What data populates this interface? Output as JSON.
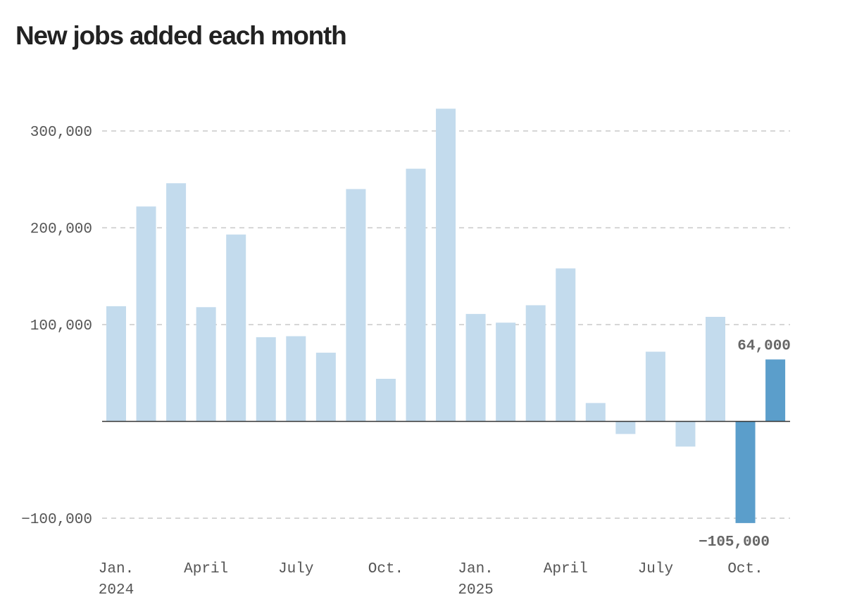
{
  "chart_data": {
    "type": "bar",
    "title": "New jobs added each month",
    "xlabel": "",
    "ylabel": "",
    "ylim": [
      -110000,
      330000
    ],
    "grid": true,
    "legend": "none",
    "y_ticks": [
      {
        "value": 300000,
        "label": "300,000"
      },
      {
        "value": 200000,
        "label": "200,000"
      },
      {
        "value": 100000,
        "label": "100,000"
      },
      {
        "value": -100000,
        "label": "−100,000"
      }
    ],
    "x_ticks": [
      {
        "index": 0,
        "label": "Jan.",
        "year": "2024"
      },
      {
        "index": 3,
        "label": "April",
        "year": ""
      },
      {
        "index": 6,
        "label": "July",
        "year": ""
      },
      {
        "index": 9,
        "label": "Oct.",
        "year": ""
      },
      {
        "index": 12,
        "label": "Jan.",
        "year": "2025"
      },
      {
        "index": 15,
        "label": "April",
        "year": ""
      },
      {
        "index": 18,
        "label": "July",
        "year": ""
      },
      {
        "index": 21,
        "label": "Oct.",
        "year": ""
      }
    ],
    "categories": [
      "2024-01",
      "2024-02",
      "2024-03",
      "2024-04",
      "2024-05",
      "2024-06",
      "2024-07",
      "2024-08",
      "2024-09",
      "2024-10",
      "2024-11",
      "2024-12",
      "2025-01",
      "2025-02",
      "2025-03",
      "2025-04",
      "2025-05",
      "2025-06",
      "2025-07",
      "2025-08",
      "2025-09",
      "2025-10",
      "2025-11"
    ],
    "values": [
      119000,
      222000,
      246000,
      118000,
      193000,
      87000,
      88000,
      71000,
      240000,
      44000,
      261000,
      323000,
      111000,
      102000,
      120000,
      158000,
      19000,
      -13000,
      72000,
      -26000,
      108000,
      -105000,
      64000
    ],
    "highlighted": [
      21,
      22
    ],
    "data_labels": [
      {
        "index": 22,
        "text": "64,000"
      },
      {
        "index": 21,
        "text": "−105,000"
      }
    ],
    "colors": {
      "bar": "#c3dbed",
      "highlight": "#5b9ecb",
      "grid": "#c8c8c8",
      "zero_line": "#333333",
      "tick_text": "#555555",
      "label_text": "#666666"
    }
  }
}
